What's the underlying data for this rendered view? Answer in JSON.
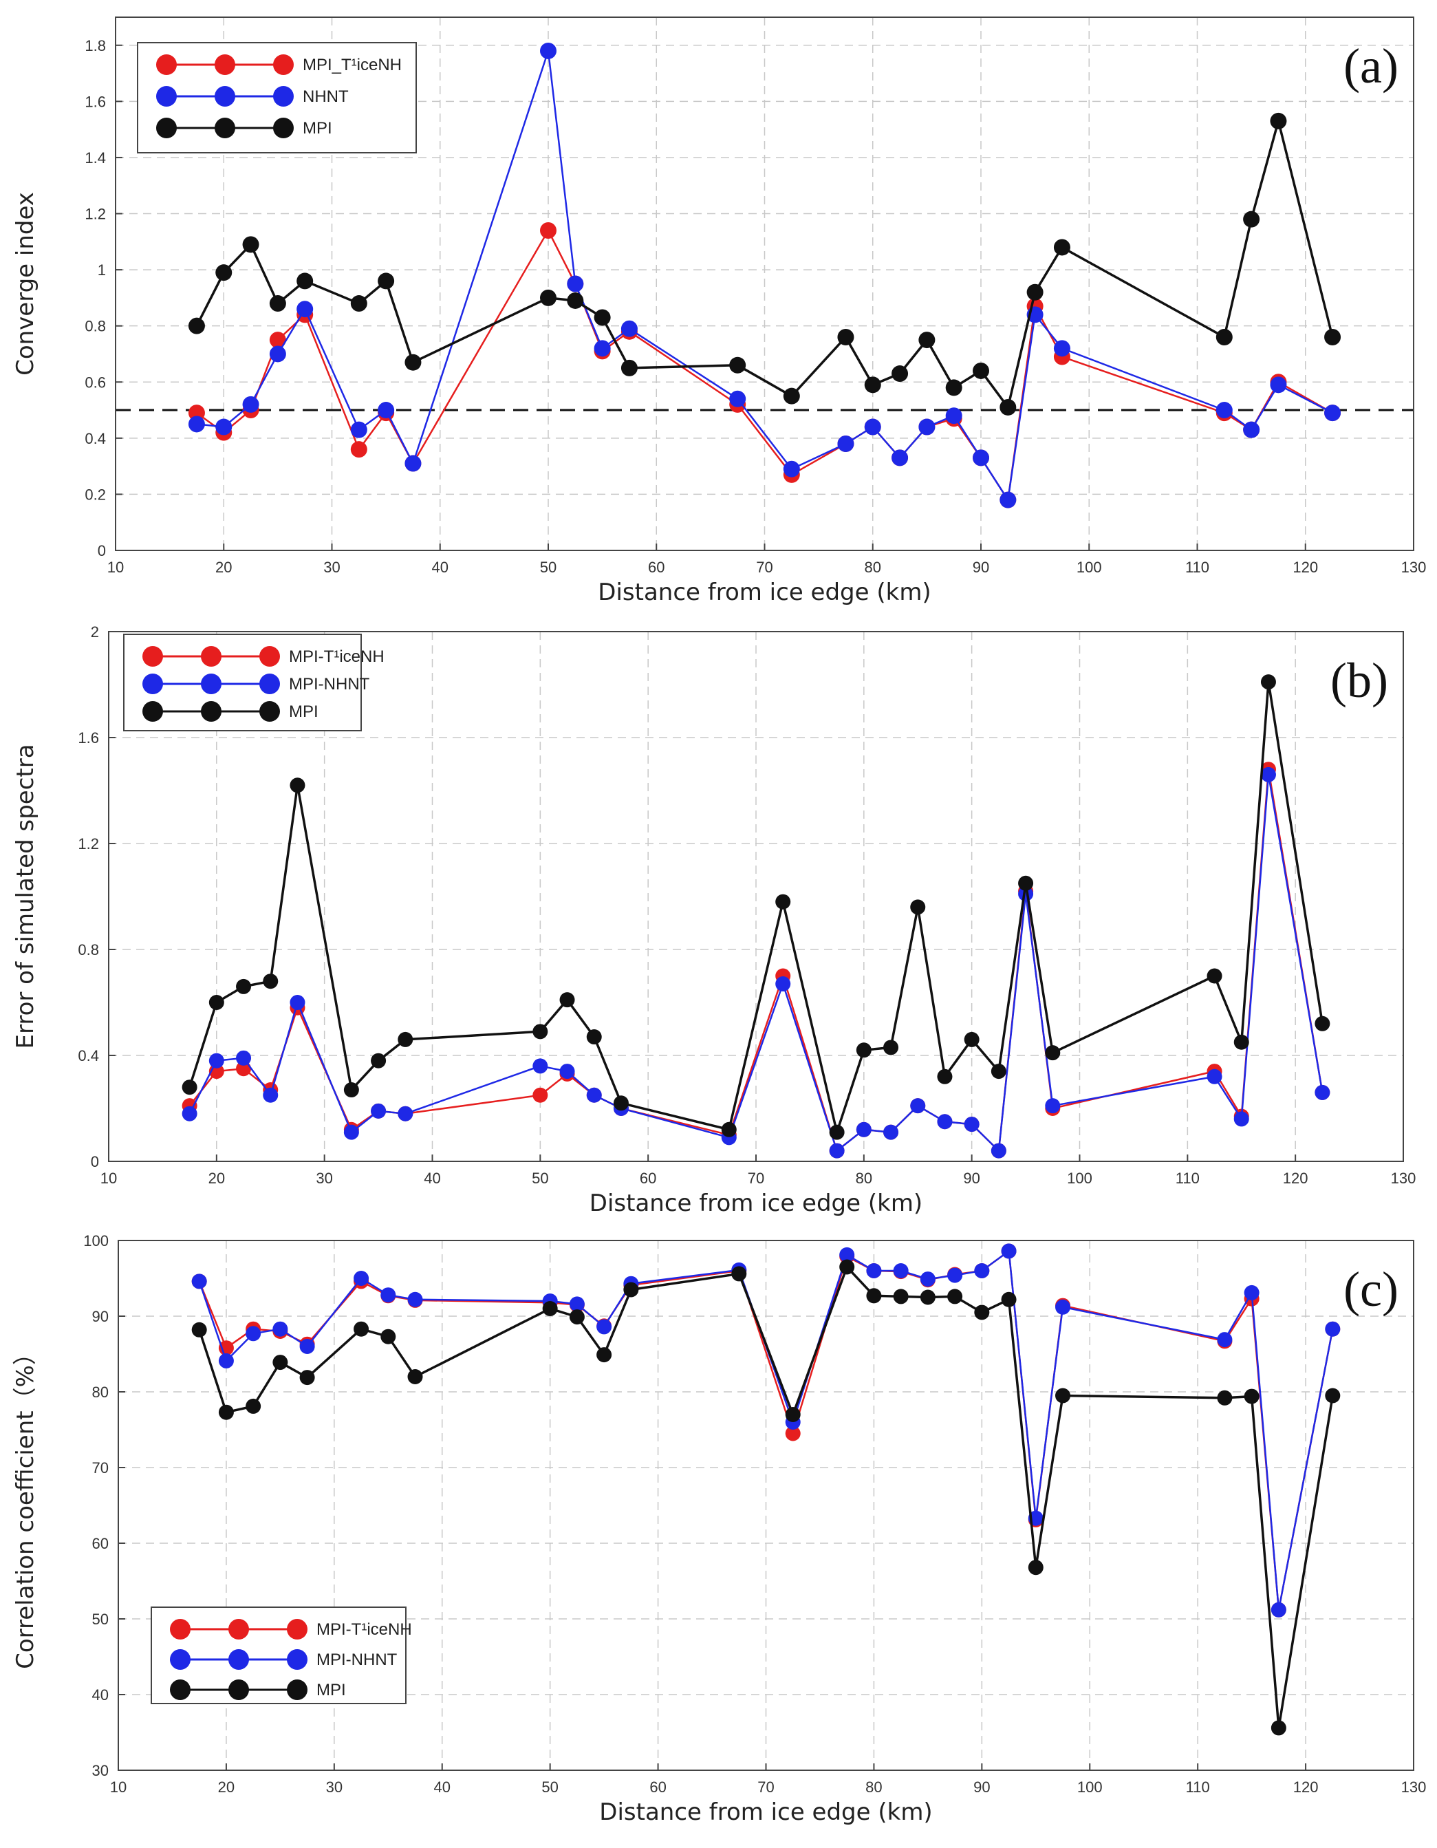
{
  "chart_data": [
    {
      "type": "line",
      "panel_label": "(a)",
      "xlabel": "Distance from ice edge (km)",
      "ylabel": "Converge index",
      "xlim": [
        10,
        130
      ],
      "ylim": [
        0,
        1.9
      ],
      "xticks": [
        10,
        20,
        30,
        40,
        50,
        60,
        70,
        80,
        90,
        100,
        110,
        120,
        130
      ],
      "yticks": [
        0,
        0.2,
        0.4,
        0.6,
        0.8,
        1,
        1.2,
        1.4,
        1.6,
        1.8
      ],
      "grid": true,
      "legend_position": "top-left",
      "reference_line": {
        "y": 0.5,
        "style": "dashed"
      },
      "series": [
        {
          "name": "MPI_T¹iceNH",
          "color": "#e61e1e",
          "x": [
            17.5,
            20,
            22.5,
            25,
            27.5,
            32.5,
            35,
            37.5,
            50,
            52.5,
            55,
            57.5,
            67.5,
            72.5,
            77.5,
            80,
            82.5,
            85,
            87.5,
            90,
            92.5,
            95,
            97.5,
            112.5,
            115,
            117.5,
            122.5
          ],
          "y": [
            0.49,
            0.42,
            0.5,
            0.75,
            0.84,
            0.36,
            0.49,
            0.31,
            1.14,
            0.95,
            0.71,
            0.78,
            0.52,
            0.27,
            0.38,
            0.44,
            0.33,
            0.44,
            0.47,
            0.33,
            0.18,
            0.87,
            0.69,
            0.49,
            0.43,
            0.6,
            0.49
          ]
        },
        {
          "name": "NHNT",
          "color": "#1e28e6",
          "x": [
            17.5,
            20,
            22.5,
            25,
            27.5,
            32.5,
            35,
            37.5,
            50,
            52.5,
            55,
            57.5,
            67.5,
            72.5,
            77.5,
            80,
            82.5,
            85,
            87.5,
            90,
            92.5,
            95,
            97.5,
            112.5,
            115,
            117.5,
            122.5
          ],
          "y": [
            0.45,
            0.44,
            0.52,
            0.7,
            0.86,
            0.43,
            0.5,
            0.31,
            1.78,
            0.95,
            0.72,
            0.79,
            0.54,
            0.29,
            0.38,
            0.44,
            0.33,
            0.44,
            0.48,
            0.33,
            0.18,
            0.84,
            0.72,
            0.5,
            0.43,
            0.59,
            0.49
          ]
        },
        {
          "name": "MPI",
          "color": "#111111",
          "x": [
            17.5,
            20,
            22.5,
            25,
            27.5,
            32.5,
            35,
            37.5,
            50,
            52.5,
            55,
            57.5,
            67.5,
            72.5,
            77.5,
            80,
            82.5,
            85,
            87.5,
            90,
            92.5,
            95,
            97.5,
            112.5,
            115,
            117.5,
            122.5
          ],
          "y": [
            0.8,
            0.99,
            1.09,
            0.88,
            0.96,
            0.88,
            0.96,
            0.67,
            0.9,
            0.89,
            0.83,
            0.65,
            0.66,
            0.55,
            0.76,
            0.59,
            0.63,
            0.75,
            0.58,
            0.64,
            0.51,
            0.92,
            1.08,
            0.76,
            1.18,
            1.53,
            0.76
          ]
        }
      ]
    },
    {
      "type": "line",
      "panel_label": "(b)",
      "xlabel": "Distance from ice edge (km)",
      "ylabel": "Error of simulated spectra",
      "xlim": [
        10,
        130
      ],
      "ylim": [
        0,
        2
      ],
      "xticks": [
        10,
        20,
        30,
        40,
        50,
        60,
        70,
        80,
        90,
        100,
        110,
        120,
        130
      ],
      "yticks": [
        0,
        0.4,
        0.8,
        1.2,
        1.6,
        2
      ],
      "grid": true,
      "legend_position": "top-left",
      "series": [
        {
          "name": "MPI-T¹iceNH",
          "color": "#e61e1e",
          "x": [
            17.5,
            20,
            22.5,
            25,
            27.5,
            32.5,
            35,
            37.5,
            50,
            52.5,
            55,
            57.5,
            67.5,
            72.5,
            77.5,
            80,
            82.5,
            85,
            87.5,
            90,
            92.5,
            95,
            97.5,
            112.5,
            115,
            117.5,
            122.5
          ],
          "y": [
            0.21,
            0.34,
            0.35,
            0.27,
            0.58,
            0.12,
            0.19,
            0.18,
            0.25,
            0.33,
            0.25,
            0.2,
            0.1,
            0.7,
            0.04,
            0.12,
            0.11,
            0.21,
            0.15,
            0.14,
            0.04,
            1.02,
            0.2,
            0.34,
            0.17,
            1.48,
            0.26
          ]
        },
        {
          "name": "MPI-NHNT",
          "color": "#1e28e6",
          "x": [
            17.5,
            20,
            22.5,
            25,
            27.5,
            32.5,
            35,
            37.5,
            50,
            52.5,
            55,
            57.5,
            67.5,
            72.5,
            77.5,
            80,
            82.5,
            85,
            87.5,
            90,
            92.5,
            95,
            97.5,
            112.5,
            115,
            117.5,
            122.5
          ],
          "y": [
            0.18,
            0.38,
            0.39,
            0.25,
            0.6,
            0.11,
            0.19,
            0.18,
            0.36,
            0.34,
            0.25,
            0.2,
            0.09,
            0.67,
            0.04,
            0.12,
            0.11,
            0.21,
            0.15,
            0.14,
            0.04,
            1.01,
            0.21,
            0.32,
            0.16,
            1.46,
            0.26
          ]
        },
        {
          "name": "MPI",
          "color": "#111111",
          "x": [
            17.5,
            20,
            22.5,
            25,
            27.5,
            32.5,
            35,
            37.5,
            50,
            52.5,
            55,
            57.5,
            67.5,
            72.5,
            77.5,
            80,
            82.5,
            85,
            87.5,
            90,
            92.5,
            95,
            97.5,
            112.5,
            115,
            117.5,
            122.5
          ],
          "y": [
            0.28,
            0.6,
            0.66,
            0.68,
            1.42,
            0.27,
            0.38,
            0.46,
            0.49,
            0.61,
            0.47,
            0.22,
            0.12,
            0.98,
            0.11,
            0.42,
            0.43,
            0.96,
            0.32,
            0.46,
            0.34,
            1.05,
            0.41,
            0.7,
            0.45,
            1.81,
            0.52
          ]
        }
      ]
    },
    {
      "type": "line",
      "panel_label": "(c)",
      "xlabel": "Distance from ice edge (km)",
      "ylabel": "Correlation coefficient（%）",
      "xlim": [
        10,
        130
      ],
      "ylim": [
        30,
        100
      ],
      "xticks": [
        10,
        20,
        30,
        40,
        50,
        60,
        70,
        80,
        90,
        100,
        110,
        120,
        130
      ],
      "yticks": [
        30,
        40,
        50,
        60,
        70,
        80,
        90,
        100
      ],
      "grid": true,
      "legend_position": "bottom-left",
      "series": [
        {
          "name": "MPI-T¹iceNH",
          "color": "#e61e1e",
          "x": [
            17.5,
            20,
            22.5,
            25,
            27.5,
            32.5,
            35,
            37.5,
            50,
            52.5,
            55,
            57.5,
            67.5,
            72.5,
            77.5,
            80,
            82.5,
            85,
            87.5,
            90,
            92.5,
            95,
            97.5,
            112.5,
            115,
            117.5,
            122.5
          ],
          "y": [
            94.6,
            85.8,
            88.3,
            88.0,
            86.3,
            94.6,
            92.7,
            92.1,
            91.8,
            91.5,
            88.7,
            94.1,
            96.0,
            74.5,
            97.9,
            96.0,
            95.9,
            94.8,
            95.5,
            96.0,
            98.6,
            63.1,
            91.4,
            86.7,
            92.3,
            51.2,
            88.3
          ]
        },
        {
          "name": "MPI-NHNT",
          "color": "#1e28e6",
          "x": [
            17.5,
            20,
            22.5,
            25,
            27.5,
            32.5,
            35,
            37.5,
            50,
            52.5,
            55,
            57.5,
            67.5,
            72.5,
            77.5,
            80,
            82.5,
            85,
            87.5,
            90,
            92.5,
            95,
            97.5,
            112.5,
            115,
            117.5,
            122.5
          ],
          "y": [
            94.6,
            84.1,
            87.7,
            88.3,
            86.0,
            95.0,
            92.8,
            92.2,
            92.0,
            91.6,
            88.6,
            94.3,
            96.1,
            76.0,
            98.1,
            96.0,
            96.0,
            94.9,
            95.4,
            96.0,
            98.6,
            63.3,
            91.2,
            86.9,
            93.1,
            51.2,
            88.3
          ]
        },
        {
          "name": "MPI",
          "color": "#111111",
          "x": [
            17.5,
            20,
            22.5,
            25,
            27.5,
            32.5,
            35,
            37.5,
            50,
            52.5,
            55,
            57.5,
            67.5,
            72.5,
            77.5,
            80,
            82.5,
            85,
            87.5,
            90,
            92.5,
            95,
            97.5,
            112.5,
            115,
            117.5,
            122.5
          ],
          "y": [
            88.2,
            77.3,
            78.1,
            83.9,
            81.9,
            88.3,
            87.3,
            82.0,
            91.0,
            89.9,
            84.9,
            93.5,
            95.6,
            77.0,
            96.5,
            92.7,
            92.6,
            92.5,
            92.6,
            90.5,
            92.2,
            56.8,
            79.5,
            79.2,
            79.4,
            35.6,
            79.5
          ]
        }
      ]
    }
  ]
}
